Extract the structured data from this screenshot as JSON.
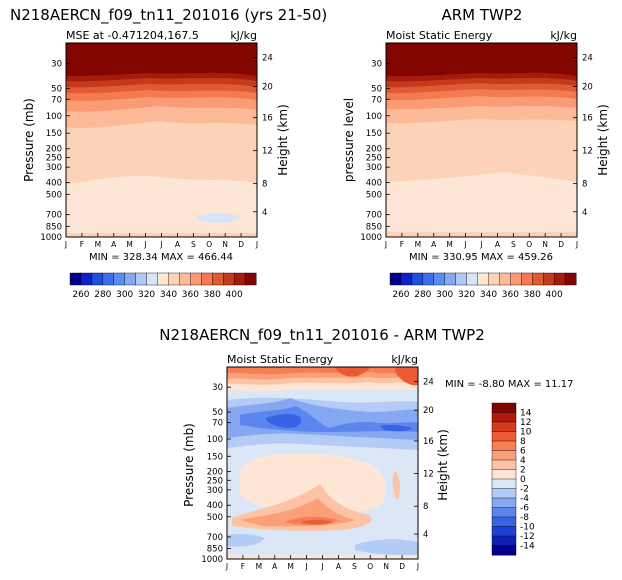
{
  "chart_data": [
    {
      "type": "heatmap",
      "panel": "top-left",
      "title": "N218AERCN_f09_tn11_201016 (yrs 21-50)",
      "subtitle_left": "MSE at -0.471204,167.5",
      "units": "kJ/kg",
      "ylabel_left": "Pressure (mb)",
      "ylabel_right": "Height (km)",
      "x_ticks": [
        "J",
        "F",
        "M",
        "A",
        "M",
        "J",
        "J",
        "A",
        "S",
        "O",
        "N",
        "D",
        "J"
      ],
      "p_ticks": [
        "30",
        "50",
        "70",
        "100",
        "150",
        "200",
        "250",
        "300",
        "400",
        "500",
        "700",
        "850",
        "1000"
      ],
      "height_ticks": [
        "24",
        "20",
        "16",
        "12",
        "8",
        "4"
      ],
      "stats": "MIN = 328.34  MAX = 466.44",
      "min": 328.34,
      "max": 466.44
    },
    {
      "type": "heatmap",
      "panel": "top-right",
      "title": "ARM TWP2",
      "subtitle_left": "Moist Static Energy",
      "units": "kJ/kg",
      "ylabel_left": "pressure level",
      "ylabel_right": "Height (km)",
      "x_ticks": [
        "J",
        "F",
        "M",
        "A",
        "M",
        "J",
        "J",
        "A",
        "S",
        "O",
        "N",
        "D",
        "J"
      ],
      "p_ticks": [
        "30",
        "50",
        "70",
        "100",
        "150",
        "200",
        "250",
        "300",
        "400",
        "500",
        "700",
        "850",
        "1000"
      ],
      "height_ticks": [
        "24",
        "20",
        "16",
        "12",
        "8",
        "4"
      ],
      "stats": "MIN = 330.95  MAX = 459.26",
      "min": 330.95,
      "max": 459.26
    },
    {
      "type": "heatmap",
      "panel": "bottom",
      "title": "N218AERCN_f09_tn11_201016 - ARM TWP2",
      "subtitle_left": "Moist Static Energy",
      "units": "kJ/kg",
      "ylabel_left": "Pressure (mb)",
      "ylabel_right": "Height (km)",
      "x_ticks": [
        "J",
        "F",
        "M",
        "A",
        "M",
        "J",
        "J",
        "A",
        "S",
        "O",
        "N",
        "D",
        "J"
      ],
      "p_ticks": [
        "30",
        "50",
        "70",
        "100",
        "150",
        "200",
        "250",
        "300",
        "400",
        "500",
        "700",
        "850",
        "1000"
      ],
      "height_ticks": [
        "24",
        "20",
        "16",
        "12",
        "8",
        "4"
      ],
      "stats": "MIN =   -8.80  MAX =   11.17",
      "min": -8.8,
      "max": 11.17
    }
  ],
  "colorbar_top": {
    "levels": [
      "260",
      "280",
      "300",
      "320",
      "340",
      "360",
      "380",
      "400"
    ],
    "colors": [
      "#00008b",
      "#0d23c9",
      "#1e4fe0",
      "#3d6fe8",
      "#5b8ef0",
      "#87a8f3",
      "#b0c8f6",
      "#d8e4f9",
      "#fde7d8",
      "#fcd2b9",
      "#fcba99",
      "#fb9b74",
      "#f57a52",
      "#e05a33",
      "#c43a1c",
      "#a51b0c",
      "#830500"
    ]
  },
  "colorbar_diff": {
    "levels": [
      "14",
      "12",
      "10",
      "8",
      "6",
      "4",
      "2",
      "0",
      "-2",
      "-4",
      "-6",
      "-8",
      "-10",
      "-12",
      "-14"
    ],
    "colors": [
      "#830500",
      "#b01a0c",
      "#d63a1c",
      "#ee5a33",
      "#f77d52",
      "#fb9f78",
      "#fcc3a5",
      "#fde6d6",
      "#dbe7f7",
      "#b3ccf5",
      "#86a8f2",
      "#5b86ee",
      "#3863e6",
      "#1c40d4",
      "#0d22b0",
      "#00008b"
    ]
  }
}
